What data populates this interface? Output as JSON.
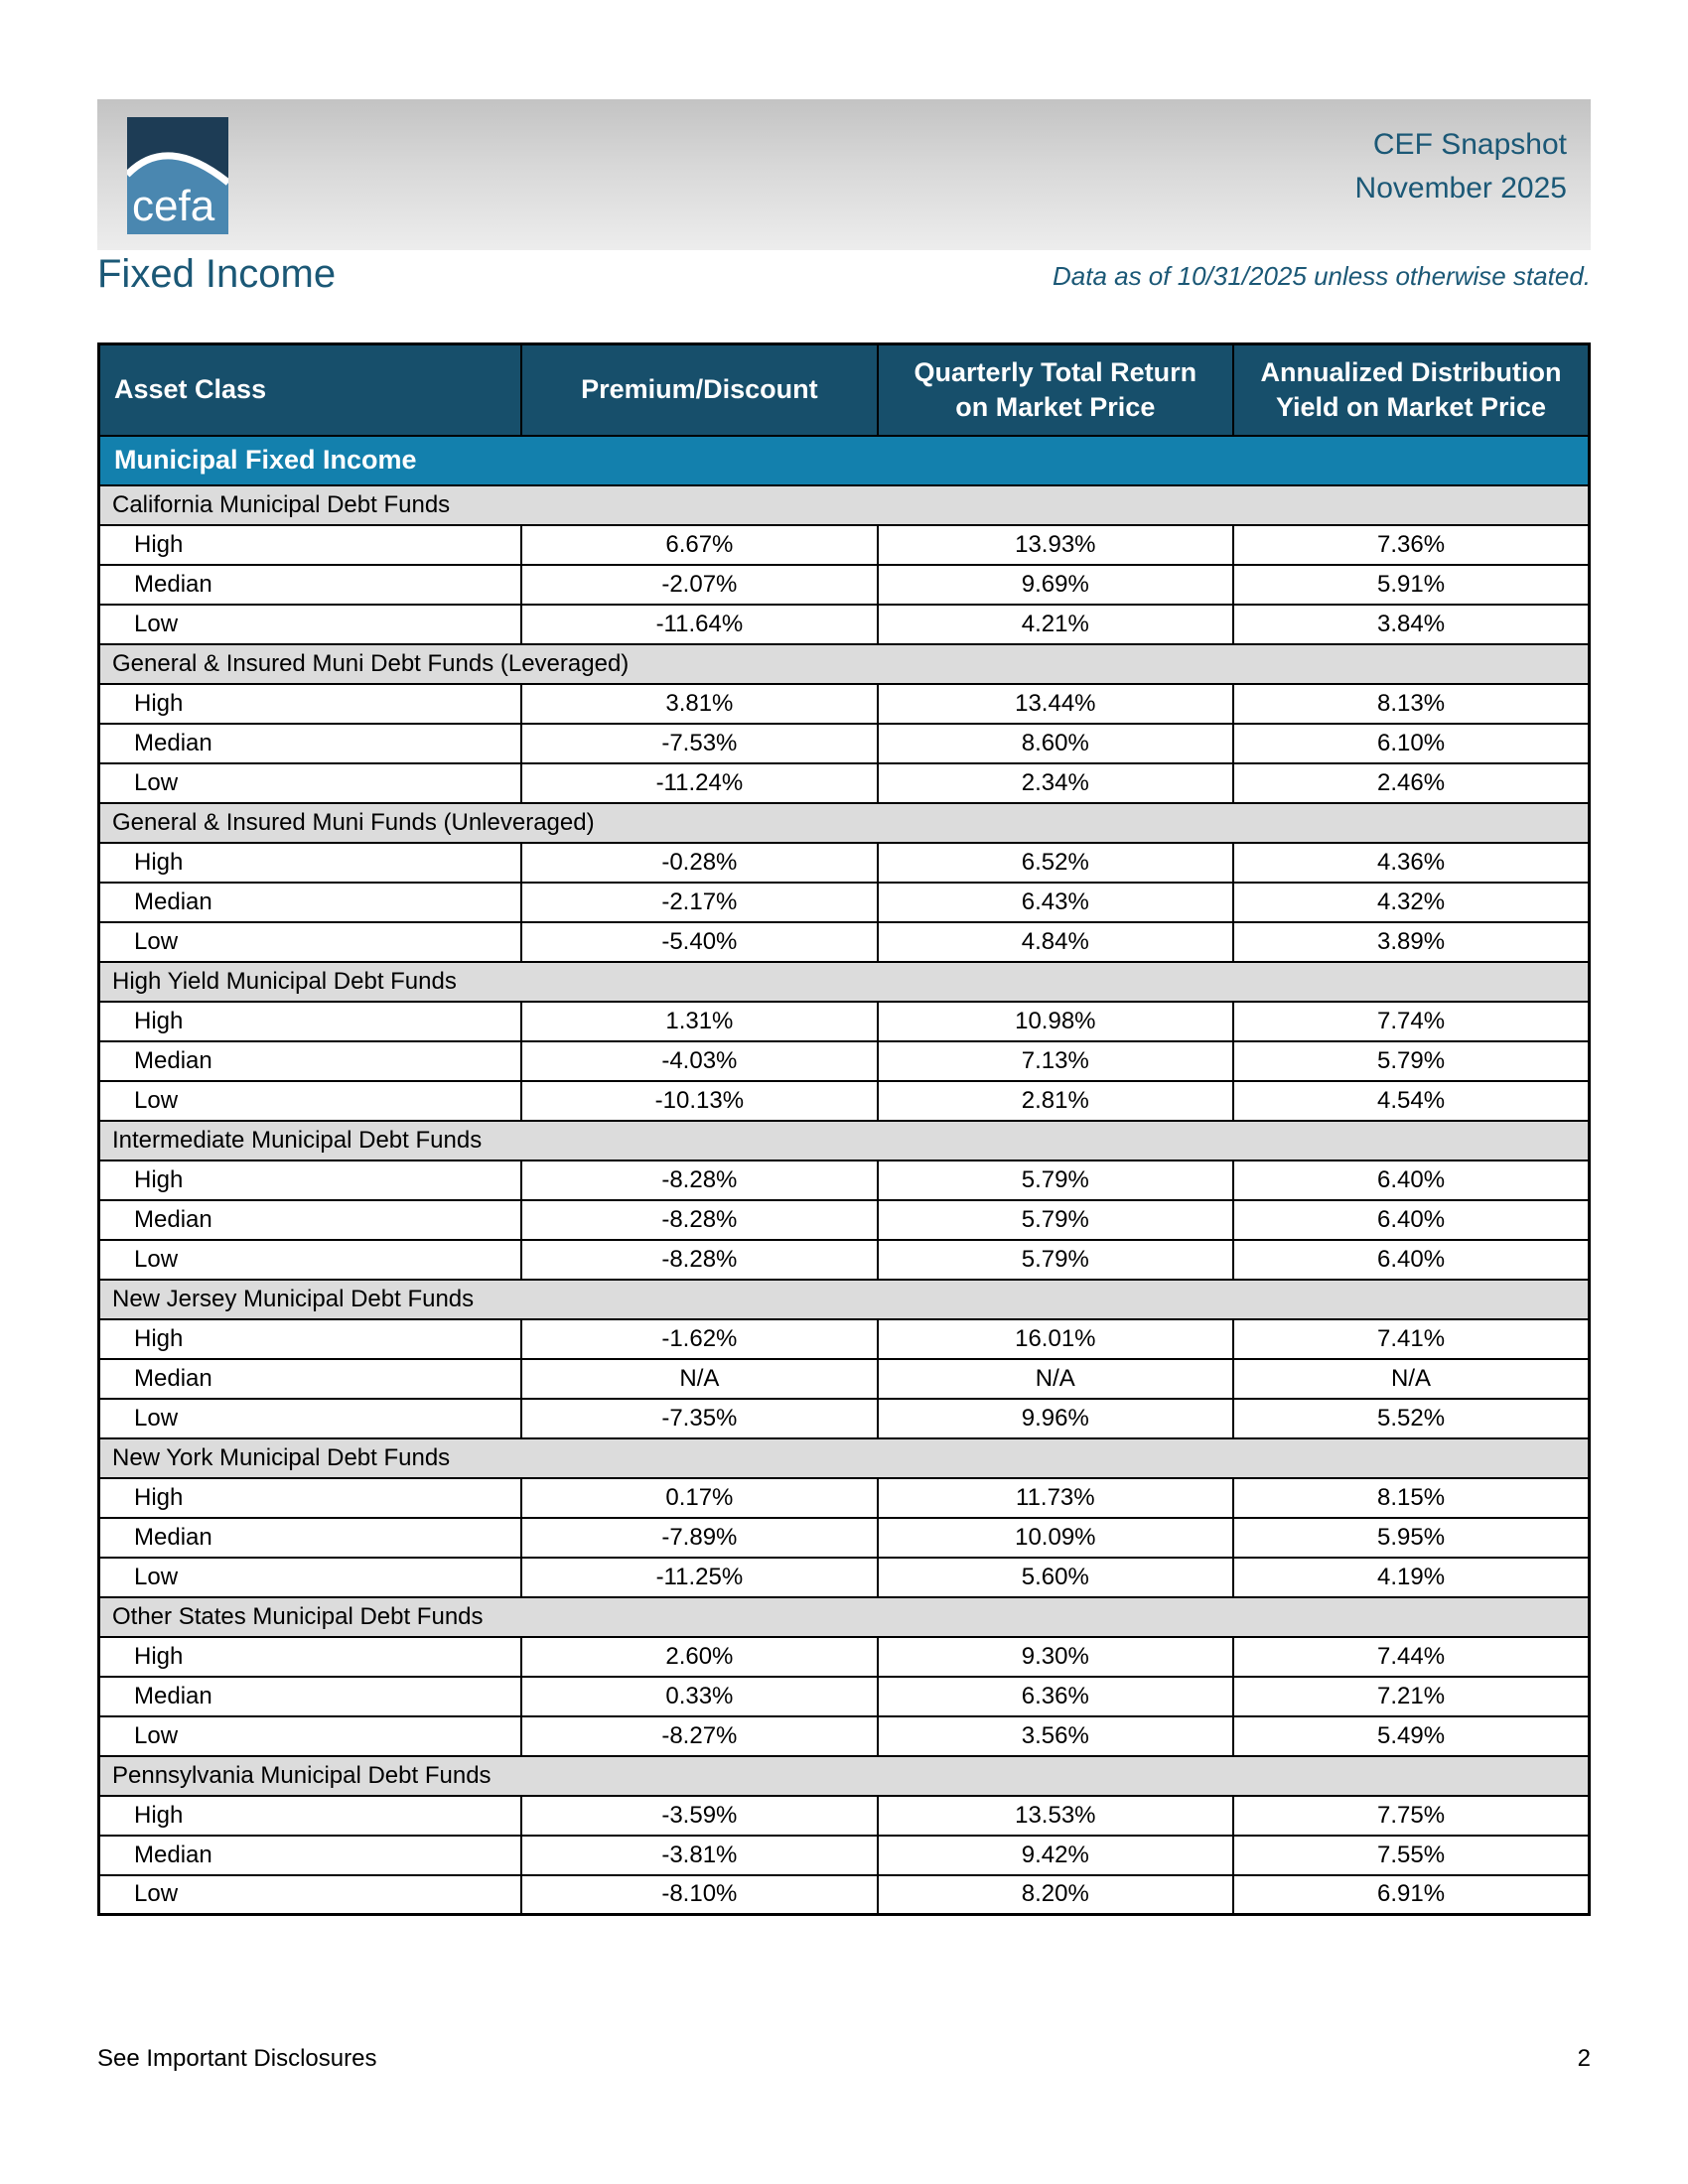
{
  "header": {
    "logo_text": "cefa",
    "title_line1": "CEF Snapshot",
    "title_line2": "November 2025",
    "page_title": "Fixed Income",
    "data_note": "Data as of 10/31/2025 unless otherwise stated."
  },
  "table": {
    "columns": [
      "Asset Class",
      "Premium/Discount",
      "Quarterly Total Return on Market Price",
      "Annualized Distribution Yield on Market Price"
    ],
    "category_band": "Municipal Fixed Income",
    "sections": [
      {
        "name": "California Municipal Debt Funds",
        "rows": [
          [
            "High",
            "6.67%",
            "13.93%",
            "7.36%"
          ],
          [
            "Median",
            "-2.07%",
            "9.69%",
            "5.91%"
          ],
          [
            "Low",
            "-11.64%",
            "4.21%",
            "3.84%"
          ]
        ]
      },
      {
        "name": "General & Insured Muni Debt Funds (Leveraged)",
        "rows": [
          [
            "High",
            "3.81%",
            "13.44%",
            "8.13%"
          ],
          [
            "Median",
            "-7.53%",
            "8.60%",
            "6.10%"
          ],
          [
            "Low",
            "-11.24%",
            "2.34%",
            "2.46%"
          ]
        ]
      },
      {
        "name": "General & Insured Muni Funds (Unleveraged)",
        "rows": [
          [
            "High",
            "-0.28%",
            "6.52%",
            "4.36%"
          ],
          [
            "Median",
            "-2.17%",
            "6.43%",
            "4.32%"
          ],
          [
            "Low",
            "-5.40%",
            "4.84%",
            "3.89%"
          ]
        ]
      },
      {
        "name": "High Yield Municipal Debt Funds",
        "rows": [
          [
            "High",
            "1.31%",
            "10.98%",
            "7.74%"
          ],
          [
            "Median",
            "-4.03%",
            "7.13%",
            "5.79%"
          ],
          [
            "Low",
            "-10.13%",
            "2.81%",
            "4.54%"
          ]
        ]
      },
      {
        "name": "Intermediate Municipal Debt Funds",
        "rows": [
          [
            "High",
            "-8.28%",
            "5.79%",
            "6.40%"
          ],
          [
            "Median",
            "-8.28%",
            "5.79%",
            "6.40%"
          ],
          [
            "Low",
            "-8.28%",
            "5.79%",
            "6.40%"
          ]
        ]
      },
      {
        "name": "New Jersey Municipal Debt Funds",
        "rows": [
          [
            "High",
            "-1.62%",
            "16.01%",
            "7.41%"
          ],
          [
            "Median",
            "N/A",
            "N/A",
            "N/A"
          ],
          [
            "Low",
            "-7.35%",
            "9.96%",
            "5.52%"
          ]
        ]
      },
      {
        "name": "New York Municipal Debt Funds",
        "rows": [
          [
            "High",
            "0.17%",
            "11.73%",
            "8.15%"
          ],
          [
            "Median",
            "-7.89%",
            "10.09%",
            "5.95%"
          ],
          [
            "Low",
            "-11.25%",
            "5.60%",
            "4.19%"
          ]
        ]
      },
      {
        "name": "Other States Municipal Debt Funds",
        "rows": [
          [
            "High",
            "2.60%",
            "9.30%",
            "7.44%"
          ],
          [
            "Median",
            "0.33%",
            "6.36%",
            "7.21%"
          ],
          [
            "Low",
            "-8.27%",
            "3.56%",
            "5.49%"
          ]
        ]
      },
      {
        "name": "Pennsylvania Municipal Debt Funds",
        "rows": [
          [
            "High",
            "-3.59%",
            "13.53%",
            "7.75%"
          ],
          [
            "Median",
            "-3.81%",
            "9.42%",
            "7.55%"
          ],
          [
            "Low",
            "-8.10%",
            "8.20%",
            "6.91%"
          ]
        ]
      }
    ]
  },
  "footer": {
    "disclosure": "See Important Disclosures",
    "page_number": "2"
  },
  "colors": {
    "table_header_bg": "#174f6b",
    "category_band_bg": "#1380ad",
    "section_band_bg": "#dcdcdc",
    "title_text": "#1b5876",
    "logo_navy": "#1d3c55",
    "logo_blue": "#4a87b0"
  }
}
